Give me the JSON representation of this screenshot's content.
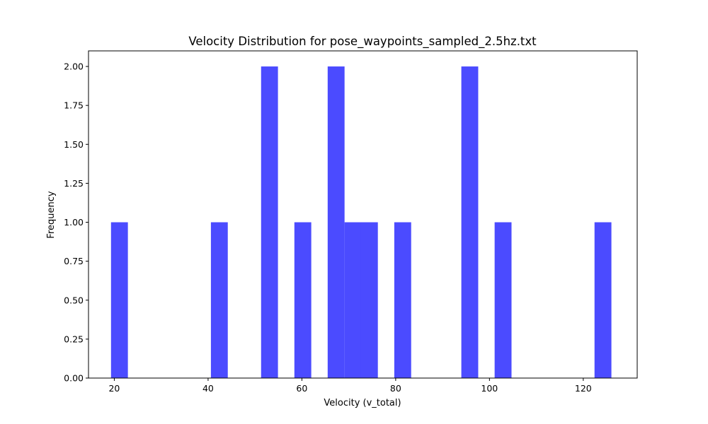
{
  "chart_data": {
    "type": "bar",
    "title": "Velocity Distribution for pose_waypoints_sampled_2.5hz.txt",
    "xlabel": "Velocity (v_total)",
    "ylabel": "Frequency",
    "bar_color": "#4b4bff",
    "xlim": [
      14.5,
      131.5
    ],
    "ylim": [
      0,
      2.1
    ],
    "bin_width": 3.6,
    "x_ticks": [
      20,
      40,
      60,
      80,
      100,
      120
    ],
    "y_ticks": [
      0.0,
      0.25,
      0.5,
      0.75,
      1.0,
      1.25,
      1.5,
      1.75,
      2.0
    ],
    "x_tick_labels": [
      "20",
      "40",
      "60",
      "80",
      "100",
      "120"
    ],
    "y_tick_labels": [
      "0.00",
      "0.25",
      "0.50",
      "0.75",
      "1.00",
      "1.25",
      "1.50",
      "1.75",
      "2.00"
    ],
    "grid": false,
    "bins": [
      {
        "start": 19.3,
        "count": 1
      },
      {
        "start": 40.6,
        "count": 1
      },
      {
        "start": 51.3,
        "count": 2
      },
      {
        "start": 58.4,
        "count": 1
      },
      {
        "start": 65.5,
        "count": 2
      },
      {
        "start": 69.1,
        "count": 1
      },
      {
        "start": 72.6,
        "count": 1
      },
      {
        "start": 79.7,
        "count": 1
      },
      {
        "start": 94.0,
        "count": 2
      },
      {
        "start": 101.1,
        "count": 1
      },
      {
        "start": 122.4,
        "count": 1
      }
    ]
  }
}
